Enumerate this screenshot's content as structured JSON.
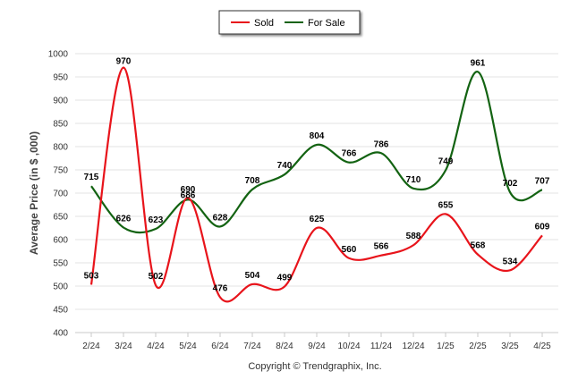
{
  "chart_data": {
    "type": "line",
    "categories": [
      "2/24",
      "3/24",
      "4/24",
      "5/24",
      "6/24",
      "7/24",
      "8/24",
      "9/24",
      "10/24",
      "11/24",
      "12/24",
      "1/25",
      "2/25",
      "3/25",
      "4/25"
    ],
    "series": [
      {
        "name": "Sold",
        "color": "#e8141b",
        "values": [
          503,
          970,
          502,
          690,
          476,
          504,
          499,
          625,
          560,
          566,
          588,
          655,
          568,
          534,
          609
        ]
      },
      {
        "name": "For Sale",
        "color": "#136312",
        "values": [
          715,
          626,
          623,
          686,
          628,
          708,
          740,
          804,
          766,
          786,
          710,
          749,
          961,
          702,
          707
        ]
      }
    ],
    "ylabel": "Average Price (in $ ,000)",
    "xlabel": "",
    "ylim": [
      400,
      1000
    ],
    "yticks": [
      400,
      450,
      500,
      550,
      600,
      650,
      700,
      750,
      800,
      850,
      900,
      950,
      1000
    ],
    "grid": true,
    "legend_position": "top-center",
    "footer": "Copyright © Trendgraphix, Inc."
  }
}
